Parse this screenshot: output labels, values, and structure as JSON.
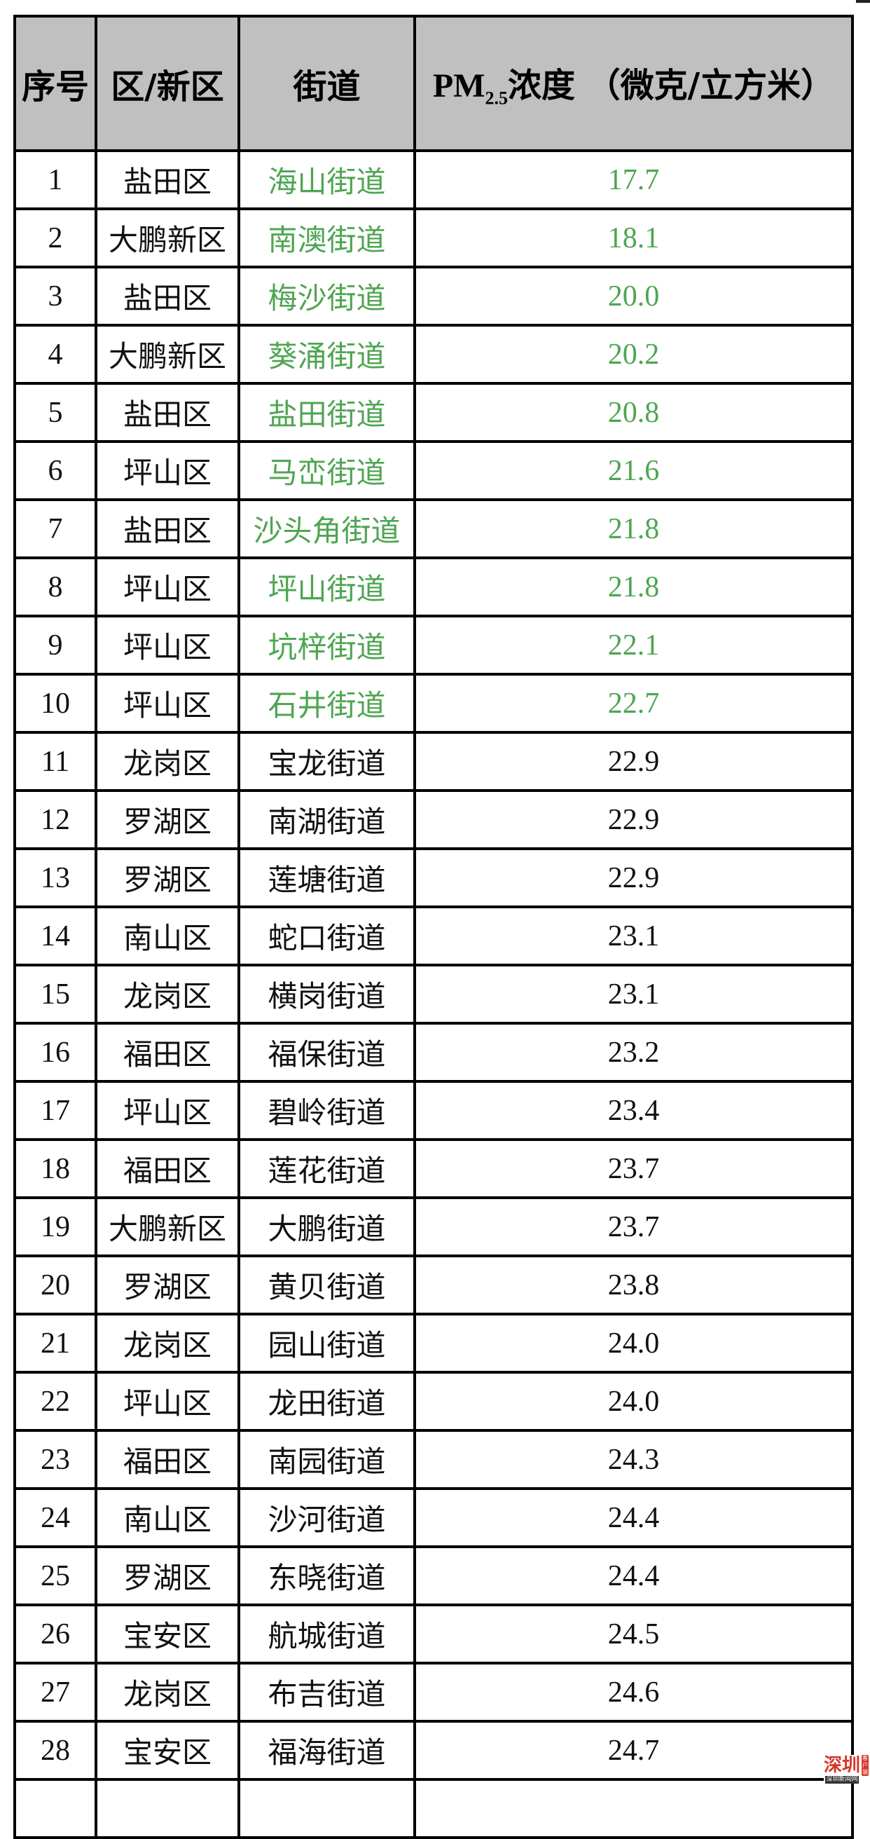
{
  "header": {
    "seq": "序号",
    "district": "区/新区",
    "street": "街道",
    "pm_prefix": "PM",
    "pm_sub": "2.5",
    "pm_suffix": "浓度 （微克/立方米）"
  },
  "highlight_color": "#4fa552",
  "rows": [
    {
      "no": "1",
      "district": "盐田区",
      "street": "海山街道",
      "value": "17.7",
      "highlight": true
    },
    {
      "no": "2",
      "district": "大鹏新区",
      "street": "南澳街道",
      "value": "18.1",
      "highlight": true
    },
    {
      "no": "3",
      "district": "盐田区",
      "street": "梅沙街道",
      "value": "20.0",
      "highlight": true
    },
    {
      "no": "4",
      "district": "大鹏新区",
      "street": "葵涌街道",
      "value": "20.2",
      "highlight": true
    },
    {
      "no": "5",
      "district": "盐田区",
      "street": "盐田街道",
      "value": "20.8",
      "highlight": true
    },
    {
      "no": "6",
      "district": "坪山区",
      "street": "马峦街道",
      "value": "21.6",
      "highlight": true
    },
    {
      "no": "7",
      "district": "盐田区",
      "street": "沙头角街道",
      "value": "21.8",
      "highlight": true
    },
    {
      "no": "8",
      "district": "坪山区",
      "street": "坪山街道",
      "value": "21.8",
      "highlight": true
    },
    {
      "no": "9",
      "district": "坪山区",
      "street": "坑梓街道",
      "value": "22.1",
      "highlight": true
    },
    {
      "no": "10",
      "district": "坪山区",
      "street": "石井街道",
      "value": "22.7",
      "highlight": true
    },
    {
      "no": "11",
      "district": "龙岗区",
      "street": "宝龙街道",
      "value": "22.9",
      "highlight": false
    },
    {
      "no": "12",
      "district": "罗湖区",
      "street": "南湖街道",
      "value": "22.9",
      "highlight": false
    },
    {
      "no": "13",
      "district": "罗湖区",
      "street": "莲塘街道",
      "value": "22.9",
      "highlight": false
    },
    {
      "no": "14",
      "district": "南山区",
      "street": "蛇口街道",
      "value": "23.1",
      "highlight": false
    },
    {
      "no": "15",
      "district": "龙岗区",
      "street": "横岗街道",
      "value": "23.1",
      "highlight": false
    },
    {
      "no": "16",
      "district": "福田区",
      "street": "福保街道",
      "value": "23.2",
      "highlight": false
    },
    {
      "no": "17",
      "district": "坪山区",
      "street": "碧岭街道",
      "value": "23.4",
      "highlight": false
    },
    {
      "no": "18",
      "district": "福田区",
      "street": "莲花街道",
      "value": "23.7",
      "highlight": false
    },
    {
      "no": "19",
      "district": "大鹏新区",
      "street": "大鹏街道",
      "value": "23.7",
      "highlight": false
    },
    {
      "no": "20",
      "district": "罗湖区",
      "street": "黄贝街道",
      "value": "23.8",
      "highlight": false
    },
    {
      "no": "21",
      "district": "龙岗区",
      "street": "园山街道",
      "value": "24.0",
      "highlight": false
    },
    {
      "no": "22",
      "district": "坪山区",
      "street": "龙田街道",
      "value": "24.0",
      "highlight": false
    },
    {
      "no": "23",
      "district": "福田区",
      "street": "南园街道",
      "value": "24.3",
      "highlight": false
    },
    {
      "no": "24",
      "district": "南山区",
      "street": "沙河街道",
      "value": "24.4",
      "highlight": false
    },
    {
      "no": "25",
      "district": "罗湖区",
      "street": "东晓街道",
      "value": "24.4",
      "highlight": false
    },
    {
      "no": "26",
      "district": "宝安区",
      "street": "航城街道",
      "value": "24.5",
      "highlight": false
    },
    {
      "no": "27",
      "district": "龙岗区",
      "street": "布吉街道",
      "value": "24.6",
      "highlight": false
    },
    {
      "no": "28",
      "district": "宝安区",
      "street": "福海街道",
      "value": "24.7",
      "highlight": false
    }
  ],
  "watermark": {
    "logo": "深圳",
    "text": "深圳新闻网",
    "side": "客户端"
  }
}
